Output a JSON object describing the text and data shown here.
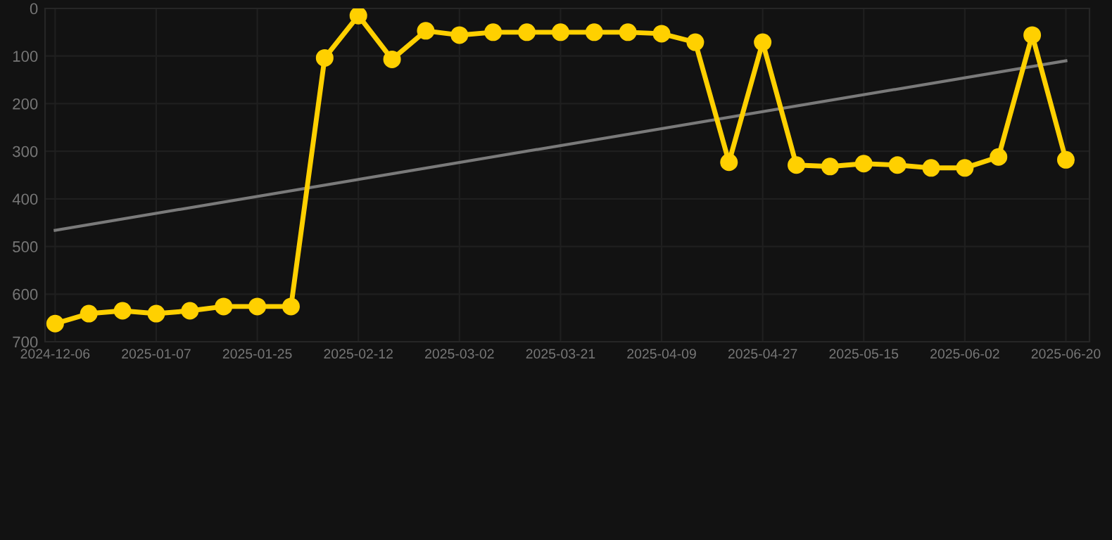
{
  "chart_data": {
    "type": "line",
    "categories": [
      "2024-12-06",
      null,
      null,
      "2025-01-07",
      null,
      null,
      "2025-01-25",
      null,
      null,
      "2025-02-12",
      null,
      null,
      "2025-03-02",
      null,
      null,
      "2025-03-21",
      null,
      null,
      "2025-04-09",
      null,
      null,
      "2025-04-27",
      null,
      null,
      "2025-05-15",
      null,
      null,
      "2025-06-02",
      null,
      null,
      "2025-06-20"
    ],
    "series": [
      {
        "color": "#ffd000",
        "marker": "circle",
        "values": [
          662,
          641,
          635,
          641,
          635,
          626,
          626,
          626,
          104,
          15,
          107,
          47,
          56,
          50,
          50,
          50,
          50,
          50,
          53,
          71,
          323,
          71,
          329,
          332,
          326,
          329,
          335,
          335,
          312,
          56,
          318
        ]
      },
      {
        "color": "#7a7a7a",
        "marker": "none",
        "values": [
          466,
          null,
          null,
          null,
          null,
          null,
          null,
          null,
          null,
          null,
          null,
          null,
          null,
          null,
          null,
          null,
          null,
          null,
          null,
          null,
          null,
          null,
          null,
          null,
          null,
          null,
          null,
          null,
          null,
          null,
          110
        ]
      }
    ],
    "ylim": [
      700,
      0
    ],
    "yticks": [
      0,
      100,
      200,
      300,
      400,
      500,
      600,
      700
    ],
    "grid": true
  }
}
